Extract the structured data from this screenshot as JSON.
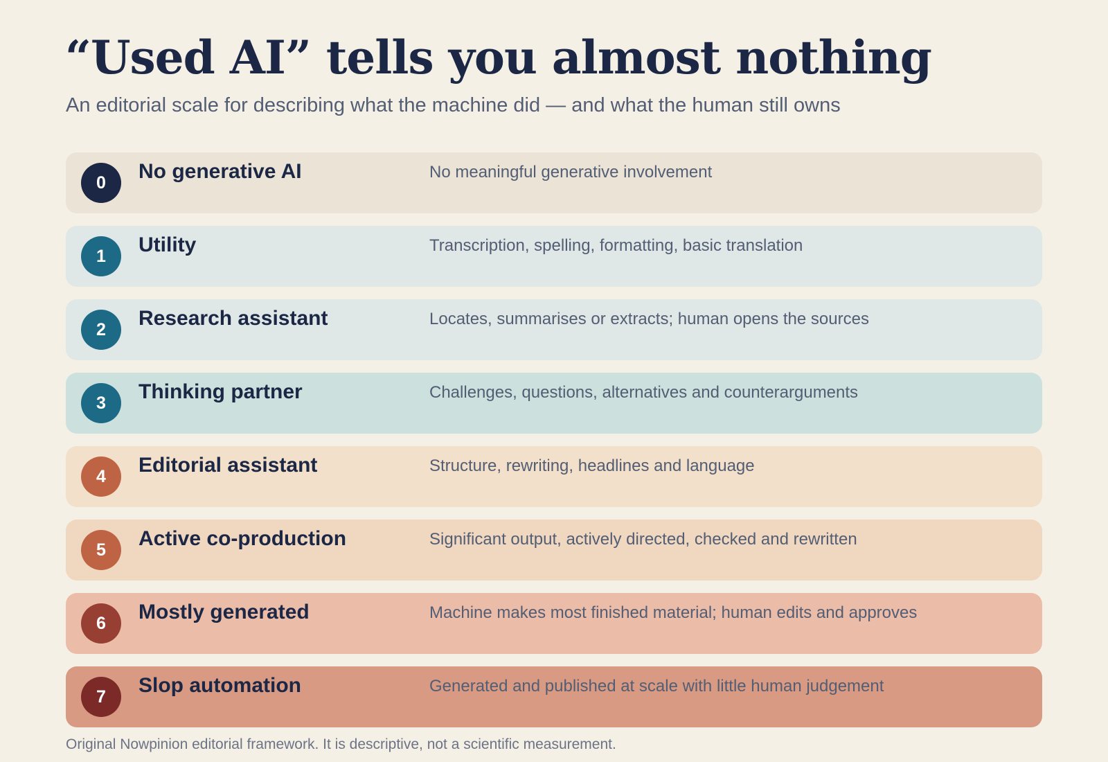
{
  "header": {
    "title": "“Used AI” tells you almost nothing",
    "subtitle": "An editorial scale for describing what the machine did — and what the human still owns"
  },
  "levels": [
    {
      "number": "0",
      "name": "No generative AI",
      "description": "No meaningful generative involvement",
      "row_color": "#eae3d6",
      "badge_color": "#1b2744"
    },
    {
      "number": "1",
      "name": "Utility",
      "description": "Transcription, spelling, formatting, basic translation",
      "row_color": "#dfe8e6",
      "badge_color": "#1d6a87"
    },
    {
      "number": "2",
      "name": "Research assistant",
      "description": "Locates, summarises or extracts; human opens the sources",
      "row_color": "#dfe8e6",
      "badge_color": "#1d6a87"
    },
    {
      "number": "3",
      "name": "Thinking partner",
      "description": "Challenges, questions, alternatives and counterarguments",
      "row_color": "#cce1dd",
      "badge_color": "#1d6a87"
    },
    {
      "number": "4",
      "name": "Editorial assistant",
      "description": "Structure, rewriting, headlines and language",
      "row_color": "#f2e0cb",
      "badge_color": "#be6444"
    },
    {
      "number": "5",
      "name": "Active co-production",
      "description": "Significant output, actively directed, checked and rewritten",
      "row_color": "#f0d7c0",
      "badge_color": "#be6444"
    },
    {
      "number": "6",
      "name": "Mostly generated",
      "description": "Machine makes most finished material; human edits and approves",
      "row_color": "#ebbda9",
      "badge_color": "#973f33"
    },
    {
      "number": "7",
      "name": "Slop automation",
      "description": "Generated and published at scale with little human judgement",
      "row_color": "#d89a82",
      "badge_color": "#7b2a27"
    }
  ],
  "footnote": "Original Nowpinion editorial framework. It is descriptive, not a scientific measurement."
}
